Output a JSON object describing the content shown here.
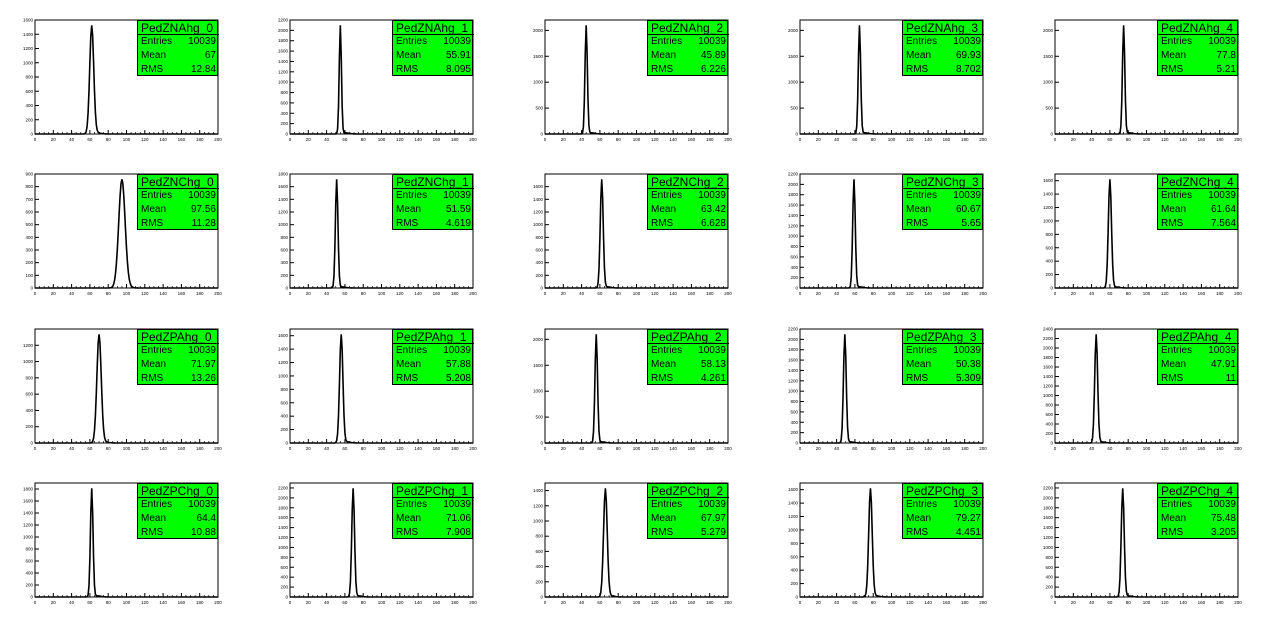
{
  "chart_data": [
    {
      "type": "line",
      "title": "PedZNAhg_0",
      "entries": "10039",
      "mean": "67",
      "rms": "12.84",
      "xlim": [
        0,
        200
      ],
      "peak": 62,
      "sigma": 2.2,
      "ymax": 1600,
      "yticks": [
        0,
        200,
        400,
        600,
        800,
        1000,
        1200,
        1400,
        1600
      ],
      "ytick_labels": [
        "0",
        "200",
        "400",
        "600",
        "800",
        "1000",
        "1200",
        "1400",
        "1600"
      ],
      "xticks": [
        0,
        20,
        40,
        60,
        80,
        100,
        120,
        140,
        160,
        180,
        200
      ],
      "xtick_labels": [
        "0",
        "20",
        "40",
        "60",
        "80",
        "100",
        "120",
        "140",
        "160",
        "180",
        "200"
      ]
    },
    {
      "type": "line",
      "title": "PedZNAhg_1",
      "entries": "10039",
      "mean": "55.91",
      "rms": "8.095",
      "xlim": [
        0,
        200
      ],
      "peak": 55,
      "sigma": 1.2,
      "ymax": 2200,
      "yticks": [
        0,
        200,
        400,
        600,
        800,
        1000,
        1200,
        1400,
        1600,
        1800,
        2000,
        2200
      ],
      "ytick_labels": [
        "0",
        "200",
        "400",
        "600",
        "800",
        "1000",
        "1200",
        "1400",
        "1600",
        "1800",
        "2000",
        "2200"
      ],
      "xticks": [
        0,
        20,
        40,
        60,
        80,
        100,
        120,
        140,
        160,
        180,
        200
      ],
      "xtick_labels": [
        "0",
        "20",
        "40",
        "60",
        "80",
        "100",
        "120",
        "140",
        "160",
        "180",
        "200"
      ]
    },
    {
      "type": "line",
      "title": "PedZNAhg_2",
      "entries": "10039",
      "mean": "45.89",
      "rms": "6.226",
      "xlim": [
        0,
        200
      ],
      "peak": 45,
      "sigma": 1.3,
      "ymax": 2200,
      "yticks": [
        0,
        500,
        1000,
        1500,
        2000
      ],
      "ytick_labels": [
        "0",
        "500",
        "1000",
        "1500",
        "2000"
      ],
      "xticks": [
        0,
        20,
        40,
        60,
        80,
        100,
        120,
        140,
        160,
        180,
        200
      ],
      "xtick_labels": [
        "0",
        "20",
        "40",
        "60",
        "80",
        "100",
        "120",
        "140",
        "160",
        "180",
        "200"
      ]
    },
    {
      "type": "line",
      "title": "PedZNAhg_3",
      "entries": "10039",
      "mean": "69.93",
      "rms": "8.702",
      "xlim": [
        0,
        200
      ],
      "peak": 65,
      "sigma": 1.3,
      "ymax": 2200,
      "yticks": [
        0,
        500,
        1000,
        1500,
        2000
      ],
      "ytick_labels": [
        "0",
        "500",
        "1000",
        "1500",
        "2000"
      ],
      "xticks": [
        0,
        20,
        40,
        60,
        80,
        100,
        120,
        140,
        160,
        180,
        200
      ],
      "xtick_labels": [
        "0",
        "20",
        "40",
        "60",
        "80",
        "100",
        "120",
        "140",
        "160",
        "180",
        "200"
      ]
    },
    {
      "type": "line",
      "title": "PedZNAhg_4",
      "entries": "10039",
      "mean": "77.8",
      "rms": "5.21",
      "xlim": [
        0,
        200
      ],
      "peak": 75,
      "sigma": 1.3,
      "ymax": 2200,
      "yticks": [
        0,
        500,
        1000,
        1500,
        2000
      ],
      "ytick_labels": [
        "0",
        "500",
        "1000",
        "1500",
        "2000"
      ],
      "xticks": [
        0,
        20,
        40,
        60,
        80,
        100,
        120,
        140,
        160,
        180,
        200
      ],
      "xtick_labels": [
        "0",
        "20",
        "40",
        "60",
        "80",
        "100",
        "120",
        "140",
        "160",
        "180",
        "200"
      ]
    },
    {
      "type": "line",
      "title": "PedZNChg_0",
      "entries": "10039",
      "mean": "97.56",
      "rms": "11.28",
      "xlim": [
        0,
        200
      ],
      "peak": 95,
      "sigma": 3.5,
      "ymax": 900,
      "yticks": [
        0,
        100,
        200,
        300,
        400,
        500,
        600,
        700,
        800,
        900
      ],
      "ytick_labels": [
        "0",
        "100",
        "200",
        "300",
        "400",
        "500",
        "600",
        "700",
        "800",
        "900"
      ],
      "xticks": [
        0,
        20,
        40,
        60,
        80,
        100,
        120,
        140,
        160,
        180,
        200
      ],
      "xtick_labels": [
        "0",
        "20",
        "40",
        "60",
        "80",
        "100",
        "120",
        "140",
        "160",
        "180",
        "200"
      ]
    },
    {
      "type": "line",
      "title": "PedZNChg_1",
      "entries": "10039",
      "mean": "51.59",
      "rms": "4.619",
      "xlim": [
        0,
        200
      ],
      "peak": 51,
      "sigma": 1.4,
      "ymax": 1800,
      "yticks": [
        0,
        200,
        400,
        600,
        800,
        1000,
        1200,
        1400,
        1600,
        1800
      ],
      "ytick_labels": [
        "0",
        "200",
        "400",
        "600",
        "800",
        "1000",
        "1200",
        "1400",
        "1600",
        "1800"
      ],
      "xticks": [
        0,
        20,
        40,
        60,
        80,
        100,
        120,
        140,
        160,
        180,
        200
      ],
      "xtick_labels": [
        "0",
        "20",
        "40",
        "60",
        "80",
        "100",
        "120",
        "140",
        "160",
        "180",
        "200"
      ]
    },
    {
      "type": "line",
      "title": "PedZNChg_2",
      "entries": "10039",
      "mean": "63.42",
      "rms": "6.628",
      "xlim": [
        0,
        200
      ],
      "peak": 62,
      "sigma": 1.6,
      "ymax": 1800,
      "yticks": [
        0,
        200,
        400,
        600,
        800,
        1000,
        1200,
        1400,
        1600
      ],
      "ytick_labels": [
        "0",
        "200",
        "400",
        "600",
        "800",
        "1000",
        "1200",
        "1400",
        "1600"
      ],
      "xticks": [
        0,
        20,
        40,
        60,
        80,
        100,
        120,
        140,
        160,
        180,
        200
      ],
      "xtick_labels": [
        "0",
        "20",
        "40",
        "60",
        "80",
        "100",
        "120",
        "140",
        "160",
        "180",
        "200"
      ]
    },
    {
      "type": "line",
      "title": "PedZNChg_3",
      "entries": "10039",
      "mean": "60.67",
      "rms": "5.65",
      "xlim": [
        0,
        200
      ],
      "peak": 59,
      "sigma": 1.4,
      "ymax": 2200,
      "yticks": [
        0,
        200,
        400,
        600,
        800,
        1000,
        1200,
        1400,
        1600,
        1800,
        2000,
        2200
      ],
      "ytick_labels": [
        "0",
        "200",
        "400",
        "600",
        "800",
        "1000",
        "1200",
        "1400",
        "1600",
        "1800",
        "2000",
        "2200"
      ],
      "xticks": [
        0,
        20,
        40,
        60,
        80,
        100,
        120,
        140,
        160,
        180,
        200
      ],
      "xtick_labels": [
        "0",
        "20",
        "40",
        "60",
        "80",
        "100",
        "120",
        "140",
        "160",
        "180",
        "200"
      ]
    },
    {
      "type": "line",
      "title": "PedZNChg_4",
      "entries": "10039",
      "mean": "61.64",
      "rms": "7.564",
      "xlim": [
        0,
        200
      ],
      "peak": 60,
      "sigma": 1.7,
      "ymax": 1700,
      "yticks": [
        0,
        200,
        400,
        600,
        800,
        1000,
        1200,
        1400,
        1600
      ],
      "ytick_labels": [
        "0",
        "200",
        "400",
        "600",
        "800",
        "1000",
        "1200",
        "1400",
        "1600"
      ],
      "xticks": [
        0,
        20,
        40,
        60,
        80,
        100,
        120,
        140,
        160,
        180,
        200
      ],
      "xtick_labels": [
        "0",
        "20",
        "40",
        "60",
        "80",
        "100",
        "120",
        "140",
        "160",
        "180",
        "200"
      ]
    },
    {
      "type": "line",
      "title": "PedZPAhg_0",
      "entries": "10039",
      "mean": "71.97",
      "rms": "13.26",
      "xlim": [
        0,
        200
      ],
      "peak": 70,
      "sigma": 2.4,
      "ymax": 1400,
      "yticks": [
        0,
        200,
        400,
        600,
        800,
        1000,
        1200
      ],
      "ytick_labels": [
        "0",
        "200",
        "400",
        "600",
        "800",
        "1000",
        "1200"
      ],
      "xticks": [
        0,
        20,
        40,
        60,
        80,
        100,
        120,
        140,
        160,
        180,
        200
      ],
      "xtick_labels": [
        "0",
        "20",
        "40",
        "60",
        "80",
        "100",
        "120",
        "140",
        "160",
        "180",
        "200"
      ]
    },
    {
      "type": "line",
      "title": "PedZPAhg_1",
      "entries": "10039",
      "mean": "57.88",
      "rms": "5.208",
      "xlim": [
        0,
        200
      ],
      "peak": 56,
      "sigma": 1.8,
      "ymax": 1700,
      "yticks": [
        0,
        200,
        400,
        600,
        800,
        1000,
        1200,
        1400,
        1600
      ],
      "ytick_labels": [
        "0",
        "200",
        "400",
        "600",
        "800",
        "1000",
        "1200",
        "1400",
        "1600"
      ],
      "xticks": [
        0,
        20,
        40,
        60,
        80,
        100,
        120,
        140,
        160,
        180,
        200
      ],
      "xtick_labels": [
        "0",
        "20",
        "40",
        "60",
        "80",
        "100",
        "120",
        "140",
        "160",
        "180",
        "200"
      ]
    },
    {
      "type": "line",
      "title": "PedZPAhg_2",
      "entries": "10039",
      "mean": "58.13",
      "rms": "4.261",
      "xlim": [
        0,
        200
      ],
      "peak": 56,
      "sigma": 1.4,
      "ymax": 2200,
      "yticks": [
        0,
        500,
        1000,
        1500,
        2000
      ],
      "ytick_labels": [
        "0",
        "500",
        "1000",
        "1500",
        "2000"
      ],
      "xticks": [
        0,
        20,
        40,
        60,
        80,
        100,
        120,
        140,
        160,
        180,
        200
      ],
      "xtick_labels": [
        "0",
        "20",
        "40",
        "60",
        "80",
        "100",
        "120",
        "140",
        "160",
        "180",
        "200"
      ]
    },
    {
      "type": "line",
      "title": "PedZPAhg_3",
      "entries": "10039",
      "mean": "50.38",
      "rms": "5.309",
      "xlim": [
        0,
        200
      ],
      "peak": 49,
      "sigma": 1.5,
      "ymax": 2200,
      "yticks": [
        0,
        200,
        400,
        600,
        800,
        1000,
        1200,
        1400,
        1600,
        1800,
        2000,
        2200
      ],
      "ytick_labels": [
        "0",
        "200",
        "400",
        "600",
        "800",
        "1000",
        "1200",
        "1400",
        "1600",
        "1800",
        "2000",
        "2200"
      ],
      "xticks": [
        0,
        20,
        40,
        60,
        80,
        100,
        120,
        140,
        160,
        180,
        200
      ],
      "xtick_labels": [
        "0",
        "20",
        "40",
        "60",
        "80",
        "100",
        "120",
        "140",
        "160",
        "180",
        "200"
      ]
    },
    {
      "type": "line",
      "title": "PedZPAhg_4",
      "entries": "10039",
      "mean": "47.91",
      "rms": "11",
      "xlim": [
        0,
        200
      ],
      "peak": 45,
      "sigma": 1.6,
      "ymax": 2400,
      "yticks": [
        0,
        200,
        400,
        600,
        800,
        1000,
        1200,
        1400,
        1600,
        1800,
        2000,
        2200,
        2400
      ],
      "ytick_labels": [
        "0",
        "200",
        "400",
        "600",
        "800",
        "1000",
        "1200",
        "1400",
        "1600",
        "1800",
        "2000",
        "2200",
        "2400"
      ],
      "xticks": [
        0,
        20,
        40,
        60,
        80,
        100,
        120,
        140,
        160,
        180,
        200
      ],
      "xtick_labels": [
        "0",
        "20",
        "40",
        "60",
        "80",
        "100",
        "120",
        "140",
        "160",
        "180",
        "200"
      ]
    },
    {
      "type": "line",
      "title": "PedZPChg_0",
      "entries": "10039",
      "mean": "64.4",
      "rms": "10.88",
      "xlim": [
        0,
        200
      ],
      "peak": 62,
      "sigma": 1.4,
      "ymax": 1900,
      "yticks": [
        0,
        200,
        400,
        600,
        800,
        1000,
        1200,
        1400,
        1600,
        1800
      ],
      "ytick_labels": [
        "0",
        "200",
        "400",
        "600",
        "800",
        "1000",
        "1200",
        "1400",
        "1600",
        "1800"
      ],
      "xticks": [
        0,
        20,
        40,
        60,
        80,
        100,
        120,
        140,
        160,
        180,
        200
      ],
      "xtick_labels": [
        "0",
        "20",
        "40",
        "60",
        "80",
        "100",
        "120",
        "140",
        "160",
        "180",
        "200"
      ]
    },
    {
      "type": "line",
      "title": "PedZPChg_1",
      "entries": "10039",
      "mean": "71.06",
      "rms": "7.908",
      "xlim": [
        0,
        200
      ],
      "peak": 69,
      "sigma": 1.5,
      "ymax": 2300,
      "yticks": [
        0,
        200,
        400,
        600,
        800,
        1000,
        1200,
        1400,
        1600,
        1800,
        2000,
        2200
      ],
      "ytick_labels": [
        "0",
        "200",
        "400",
        "600",
        "800",
        "1000",
        "1200",
        "1400",
        "1600",
        "1800",
        "2000",
        "2200"
      ],
      "xticks": [
        0,
        20,
        40,
        60,
        80,
        100,
        120,
        140,
        160,
        180,
        200
      ],
      "xtick_labels": [
        "0",
        "20",
        "40",
        "60",
        "80",
        "100",
        "120",
        "140",
        "160",
        "180",
        "200"
      ]
    },
    {
      "type": "line",
      "title": "PedZPChg_2",
      "entries": "10039",
      "mean": "67.97",
      "rms": "5.279",
      "xlim": [
        0,
        200
      ],
      "peak": 66,
      "sigma": 2.0,
      "ymax": 1500,
      "yticks": [
        0,
        200,
        400,
        600,
        800,
        1000,
        1200,
        1400
      ],
      "ytick_labels": [
        "0",
        "200",
        "400",
        "600",
        "800",
        "1000",
        "1200",
        "1400"
      ],
      "xticks": [
        0,
        20,
        40,
        60,
        80,
        100,
        120,
        140,
        160,
        180,
        200
      ],
      "xtick_labels": [
        "0",
        "20",
        "40",
        "60",
        "80",
        "100",
        "120",
        "140",
        "160",
        "180",
        "200"
      ]
    },
    {
      "type": "line",
      "title": "PedZPChg_3",
      "entries": "10039",
      "mean": "79.27",
      "rms": "4.451",
      "xlim": [
        0,
        200
      ],
      "peak": 77,
      "sigma": 1.9,
      "ymax": 1700,
      "yticks": [
        0,
        200,
        400,
        600,
        800,
        1000,
        1200,
        1400,
        1600
      ],
      "ytick_labels": [
        "0",
        "200",
        "400",
        "600",
        "800",
        "1000",
        "1200",
        "1400",
        "1600"
      ],
      "xticks": [
        0,
        20,
        40,
        60,
        80,
        100,
        120,
        140,
        160,
        180,
        200
      ],
      "xtick_labels": [
        "0",
        "20",
        "40",
        "60",
        "80",
        "100",
        "120",
        "140",
        "160",
        "180",
        "200"
      ]
    },
    {
      "type": "line",
      "title": "PedZPChg_4",
      "entries": "10039",
      "mean": "75.48",
      "rms": "3.205",
      "xlim": [
        0,
        200
      ],
      "peak": 74,
      "sigma": 1.6,
      "ymax": 2300,
      "yticks": [
        0,
        200,
        400,
        600,
        800,
        1000,
        1200,
        1400,
        1600,
        1800,
        2000,
        2200
      ],
      "ytick_labels": [
        "0",
        "200",
        "400",
        "600",
        "800",
        "1000",
        "1200",
        "1400",
        "1600",
        "1800",
        "2000",
        "2200"
      ],
      "xticks": [
        0,
        20,
        40,
        60,
        80,
        100,
        120,
        140,
        160,
        180,
        200
      ],
      "xtick_labels": [
        "0",
        "20",
        "40",
        "60",
        "80",
        "100",
        "120",
        "140",
        "160",
        "180",
        "200"
      ]
    }
  ],
  "labels": {
    "entries": "Entries",
    "mean": "Mean",
    "rms": "RMS"
  },
  "colors": {
    "statbox": "#00ff00",
    "line": "#000000",
    "background": "#ffffff"
  }
}
